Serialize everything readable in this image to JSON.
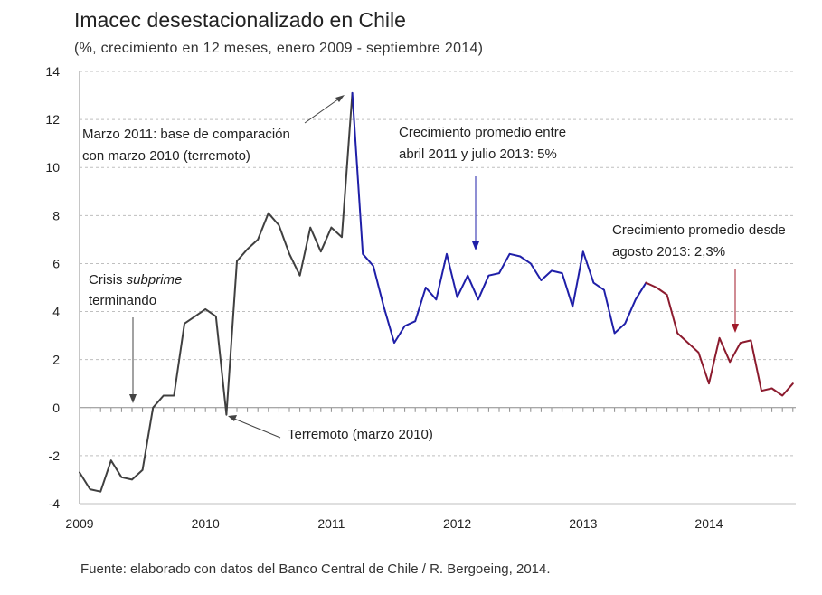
{
  "chart_data": {
    "type": "line",
    "title": "Imacec desestacionalizado en Chile",
    "subtitle": "(%, crecimiento en 12 meses, enero 2009 - septiembre 2014)",
    "xlabel": "",
    "ylabel": "",
    "ylim": [
      -4,
      14
    ],
    "yticks": [
      "14",
      "12",
      "10",
      "8",
      "6",
      "4",
      "2",
      "0",
      "-2",
      "-4"
    ],
    "xticks": [
      "2009",
      "2010",
      "2011",
      "2012",
      "2013",
      "2014"
    ],
    "grid": true,
    "x_start": "2009-01",
    "series": [
      {
        "color": "#404040",
        "x": [
          "2009-01",
          "2009-02",
          "2009-03",
          "2009-04",
          "2009-05",
          "2009-06",
          "2009-07",
          "2009-08",
          "2009-09",
          "2009-10",
          "2009-11",
          "2009-12",
          "2010-01",
          "2010-02",
          "2010-03",
          "2010-04",
          "2010-05",
          "2010-06",
          "2010-07",
          "2010-08",
          "2010-09",
          "2010-10",
          "2010-11",
          "2010-12",
          "2011-01",
          "2011-02",
          "2011-03"
        ],
        "values": [
          -2.7,
          -3.4,
          -3.5,
          -2.2,
          -2.9,
          -3.0,
          -2.6,
          0.0,
          0.5,
          0.5,
          3.5,
          3.8,
          4.1,
          3.8,
          -0.3,
          6.1,
          6.6,
          7.0,
          8.1,
          7.6,
          6.4,
          5.5,
          7.5,
          6.5,
          7.5,
          7.1,
          13.1
        ]
      },
      {
        "color": "#1f1fa8",
        "x": [
          "2011-03",
          "2011-04",
          "2011-05",
          "2011-06",
          "2011-07",
          "2011-08",
          "2011-09",
          "2011-10",
          "2011-11",
          "2011-12",
          "2012-01",
          "2012-02",
          "2012-03",
          "2012-04",
          "2012-05",
          "2012-06",
          "2012-07",
          "2012-08",
          "2012-09",
          "2012-10",
          "2012-11",
          "2012-12",
          "2013-01",
          "2013-02",
          "2013-03",
          "2013-04",
          "2013-05",
          "2013-06",
          "2013-07"
        ],
        "values": [
          13.1,
          6.4,
          5.9,
          4.2,
          2.7,
          3.4,
          3.6,
          5.0,
          4.5,
          6.4,
          4.6,
          5.5,
          4.5,
          5.5,
          5.6,
          6.4,
          6.3,
          6.0,
          5.3,
          5.7,
          5.6,
          4.2,
          6.5,
          5.2,
          4.9,
          3.1,
          3.5,
          4.5,
          5.2
        ]
      },
      {
        "color": "#8c1b2e",
        "x": [
          "2013-07",
          "2013-08",
          "2013-09",
          "2013-10",
          "2013-11",
          "2013-12",
          "2014-01",
          "2014-02",
          "2014-03",
          "2014-04",
          "2014-05",
          "2014-06",
          "2014-07",
          "2014-08",
          "2014-09"
        ],
        "values": [
          5.2,
          5.0,
          4.7,
          3.1,
          2.7,
          2.3,
          1.0,
          2.9,
          1.9,
          2.7,
          2.8,
          0.7,
          0.8,
          0.5,
          1.0
        ]
      }
    ],
    "annotations": [
      {
        "text": [
          "Marzo 2011: base de comparación",
          "con marzo 2010 (terremoto)"
        ],
        "color": "#222222"
      },
      {
        "text": [
          "Crecimiento promedio entre",
          "abril 2011 y julio 2013: 5%"
        ],
        "color": "#1f1fa8"
      },
      {
        "text": [
          "Crecimiento promedio desde",
          "agosto 2013: 2,3%"
        ],
        "color": "#a01a2a"
      },
      {
        "text_parts": [
          "Crisis ",
          "subprime"
        ],
        "line2": "terminando",
        "color": "#222222"
      },
      {
        "text": [
          "Terremoto (marzo 2010)"
        ],
        "color": "#222222"
      }
    ],
    "source": "Fuente: elaborado con datos del Banco Central de Chile / R. Bergoeing, 2014."
  }
}
